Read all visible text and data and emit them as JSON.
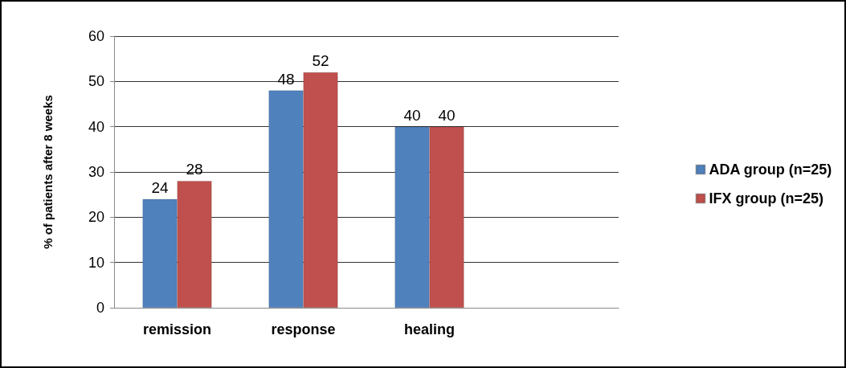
{
  "chart_data": {
    "type": "bar",
    "ylabel": "% of patients after 8 weeks",
    "categories": [
      "remission",
      "response",
      "healing",
      null
    ],
    "series": [
      {
        "name": "ADA group (n=25)",
        "color": "#4f81bd",
        "values": [
          24,
          48,
          40,
          null
        ]
      },
      {
        "name": "IFX group (n=25)",
        "color": "#c0504d",
        "values": [
          28,
          52,
          40,
          null
        ]
      }
    ],
    "ylim": [
      0,
      60
    ],
    "yticks": [
      0,
      10,
      20,
      30,
      40,
      50,
      60
    ],
    "grid": "y",
    "legend": "right",
    "data_labels": true
  }
}
